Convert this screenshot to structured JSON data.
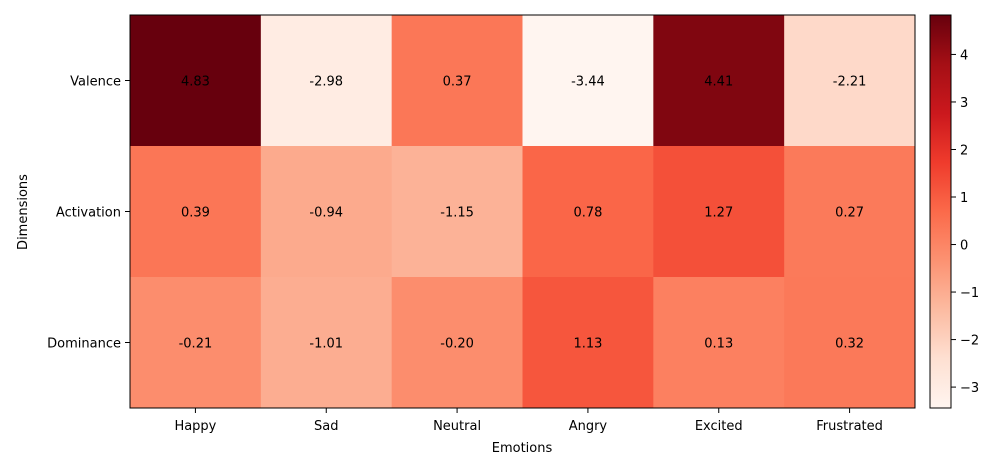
{
  "chart_data": {
    "type": "heatmap",
    "title": "",
    "xlabel": "Emotions",
    "ylabel": "Dimensions",
    "x_categories": [
      "Happy",
      "Sad",
      "Neutral",
      "Angry",
      "Excited",
      "Frustrated"
    ],
    "y_categories": [
      "Valence",
      "Activation",
      "Dominance"
    ],
    "values": [
      [
        4.83,
        -2.98,
        0.37,
        -3.44,
        4.41,
        -2.21
      ],
      [
        0.39,
        -0.94,
        -1.15,
        0.78,
        1.27,
        0.27
      ],
      [
        -0.21,
        -1.01,
        -0.2,
        1.13,
        0.13,
        0.32
      ]
    ],
    "value_labels": [
      [
        "4.83",
        "-2.98",
        "0.37",
        "-3.44",
        "4.41",
        "-2.21"
      ],
      [
        "0.39",
        "-0.94",
        "-1.15",
        "0.78",
        "1.27",
        "0.27"
      ],
      [
        "-0.21",
        "-1.01",
        "-0.20",
        "1.13",
        "0.13",
        "0.32"
      ]
    ],
    "colormap": "Reds",
    "color_range": [
      -3.44,
      4.83
    ],
    "colorbar": {
      "ticks": [
        4,
        3,
        2,
        1,
        0,
        -1,
        -2,
        -3
      ],
      "tick_labels": [
        "4",
        "3",
        "2",
        "1",
        "0",
        "−1",
        "−2",
        "−3"
      ]
    }
  }
}
